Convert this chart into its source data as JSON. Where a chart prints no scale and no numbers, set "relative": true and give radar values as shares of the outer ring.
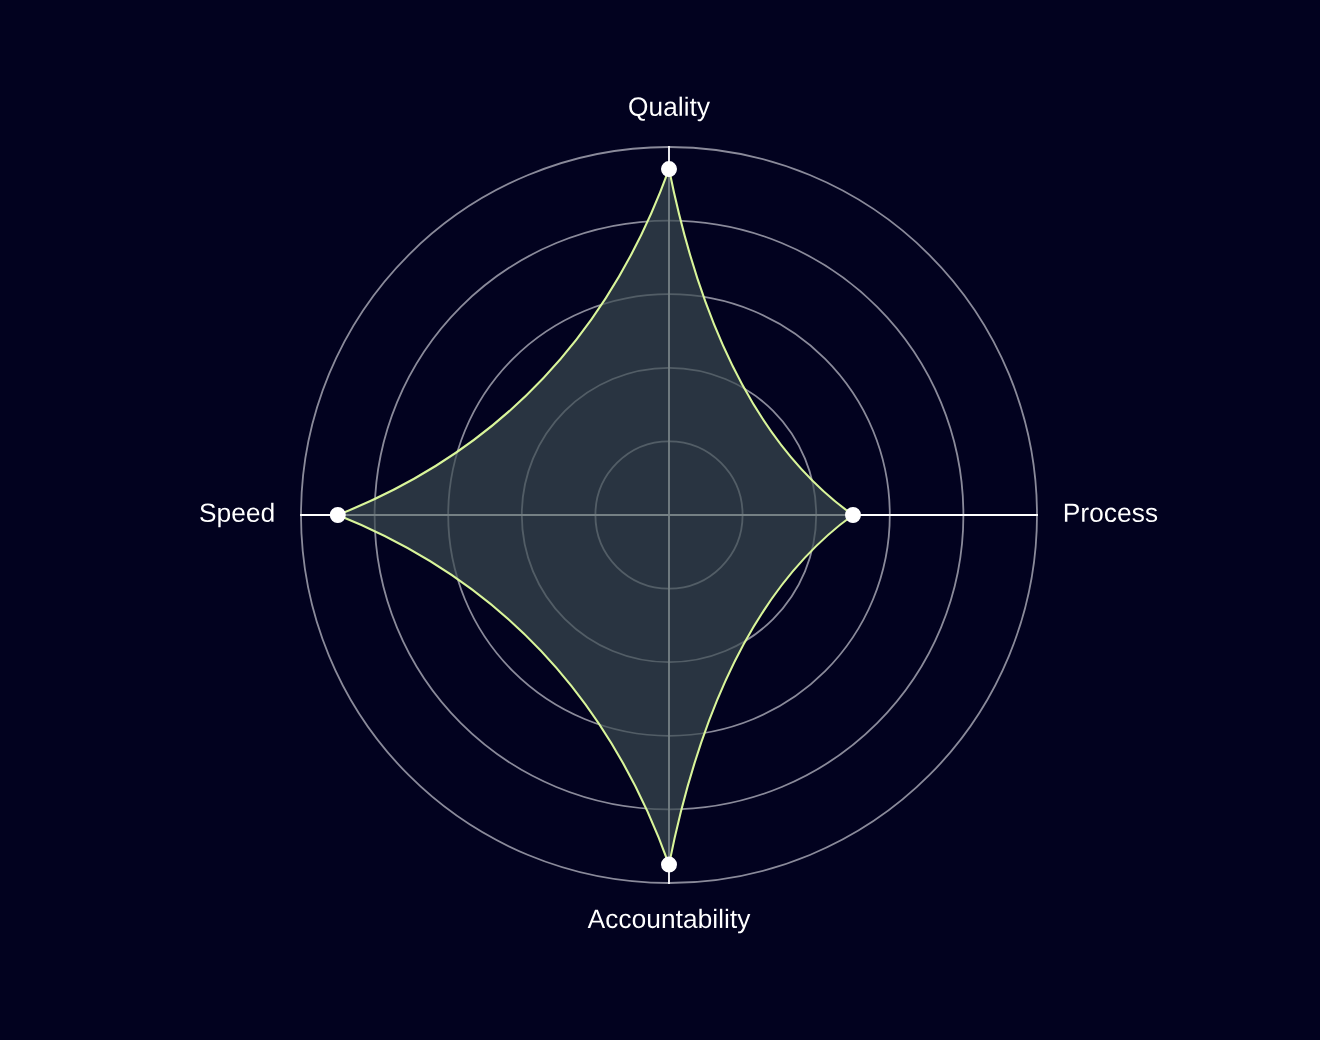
{
  "chart_data": {
    "type": "radar",
    "categories": [
      "Quality",
      "Process",
      "Accountability",
      "Speed"
    ],
    "series": [
      {
        "color": "#d9f59a",
        "values": [
          0.94,
          0.5,
          0.95,
          0.9
        ]
      }
    ],
    "relative": true,
    "grid": true,
    "marker": "circle",
    "line_style": "solid"
  }
}
